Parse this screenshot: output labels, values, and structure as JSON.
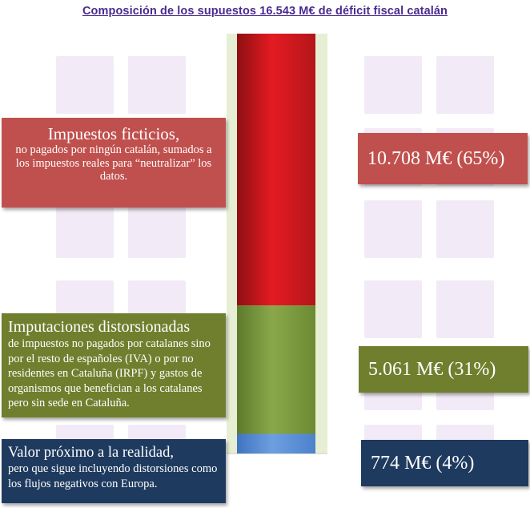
{
  "title": "Composición de los supuestos 16.543 M€ de déficit fiscal catalán",
  "colors": {
    "red": "#c0504d",
    "green": "#6f7f2e",
    "blue": "#1f3a5f",
    "title": "#4b2a8f",
    "background_tiles": "#f2eaf6",
    "column_background": "#e6efd3"
  },
  "boxes": {
    "red": {
      "heading": "Impuestos ficticios,",
      "body": "no pagados por ningún catalán, sumados a los impuestos reales para “neutralizar” los datos."
    },
    "green": {
      "heading": "Imputaciones distorsionadas",
      "body": "de impuestos no pagados por catalanes sino por el resto de españoles (IVA) o por no residentes en Cataluña (IRPF) y gastos de organismos que benefician a los catalanes pero sin sede en Cataluña."
    },
    "blue": {
      "heading": "Valor próximo a la realidad,",
      "body": "pero que sigue incluyendo distorsiones como los flujos negativos con Europa."
    }
  },
  "value_labels": {
    "red": "10.708 M€ (65%)",
    "green": "5.061 M€ (31%)",
    "blue": "774 M€ (4%)"
  },
  "chart_data": {
    "type": "bar",
    "stacked": true,
    "orientation": "vertical",
    "title": "Composición de los supuestos 16.543 M€ de déficit fiscal catalán",
    "total": 16543,
    "unit": "M€",
    "categories": [
      ""
    ],
    "series": [
      {
        "name": "Valor próximo a la realidad",
        "values": [
          774
        ],
        "percent": 4,
        "color": "#5b8fd6"
      },
      {
        "name": "Imputaciones distorsionadas",
        "values": [
          5061
        ],
        "percent": 31,
        "color": "#76923c"
      },
      {
        "name": "Impuestos ficticios",
        "values": [
          10708
        ],
        "percent": 65,
        "color": "#d7141a"
      }
    ],
    "grid": false,
    "legend": "none"
  }
}
